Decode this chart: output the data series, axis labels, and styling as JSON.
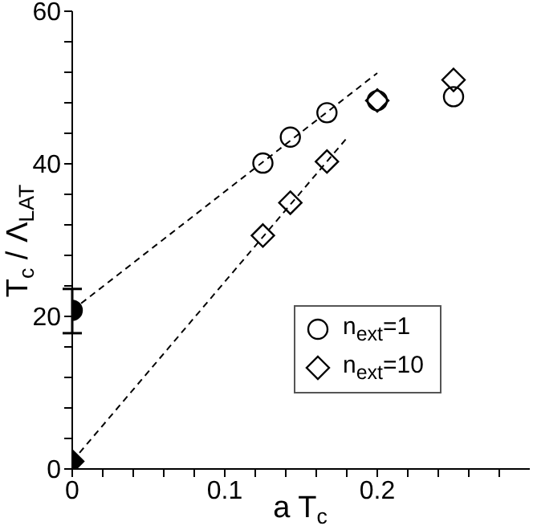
{
  "chart_data": {
    "type": "scatter",
    "xlabel": "a T$_{c}$",
    "ylabel": "T$_{c}$ / Λ$_{LAT}$",
    "xlim": [
      0,
      0.3
    ],
    "ylim": [
      0,
      60
    ],
    "xticks": [
      0,
      {
        "value": 0.02,
        "label": null
      },
      {
        "value": 0.04,
        "label": null
      },
      {
        "value": 0.06,
        "label": null
      },
      {
        "value": 0.08,
        "label": null
      },
      0.1,
      {
        "value": 0.12,
        "label": null
      },
      {
        "value": 0.14,
        "label": null
      },
      {
        "value": 0.16,
        "label": null
      },
      {
        "value": 0.18,
        "label": null
      },
      0.2,
      {
        "value": 0.22,
        "label": null
      },
      {
        "value": 0.24,
        "label": null
      },
      {
        "value": 0.26,
        "label": null
      },
      {
        "value": 0.28,
        "label": null
      }
    ],
    "yticks": [
      0,
      {
        "value": 4,
        "label": null
      },
      {
        "value": 8,
        "label": null
      },
      {
        "value": 12,
        "label": null
      },
      {
        "value": 16,
        "label": null
      },
      20,
      {
        "value": 24,
        "label": null
      },
      {
        "value": 28,
        "label": null
      },
      {
        "value": 32,
        "label": null
      },
      {
        "value": 36,
        "label": null
      },
      40,
      {
        "value": 44,
        "label": null
      },
      {
        "value": 48,
        "label": null
      },
      {
        "value": 52,
        "label": null
      },
      {
        "value": 56,
        "label": null
      },
      60
    ],
    "legend": "bottom right",
    "grid": false,
    "series": [
      {
        "name": "n$_{ext}$=1",
        "marker": "circle",
        "color": "#000000",
        "x": [
          0.125,
          0.143,
          0.167,
          0.2,
          0.25
        ],
        "values": [
          40.1,
          43.5,
          46.7,
          48.3,
          48.8
        ]
      },
      {
        "name": "n$_{ext}$=10",
        "marker": "diamond",
        "color": "#000000",
        "x": [
          0.125,
          0.143,
          0.167,
          0.2,
          0.25
        ],
        "values": [
          30.6,
          34.9,
          40.3,
          48.3,
          51.0
        ]
      },
      {
        "marker": "circle",
        "color": "#000000",
        "x": [
          0
        ],
        "values": [
          20.8
        ],
        "errors": [
          [
            17.8,
            23.6
          ]
        ]
      },
      {
        "marker": "diamond",
        "color": "#000000",
        "x": [
          0
        ],
        "values": [
          1.0
        ]
      },
      {
        "type": "line",
        "line_style": "dashed",
        "marker": "none",
        "color": "#000000",
        "x": [
          0,
          0.2
        ],
        "values": [
          20.8,
          51.9
        ]
      },
      {
        "type": "line",
        "line_style": "dashed",
        "marker": "none",
        "color": "#000000",
        "x": [
          0,
          0.181
        ],
        "values": [
          1.0,
          43.6
        ]
      }
    ]
  }
}
